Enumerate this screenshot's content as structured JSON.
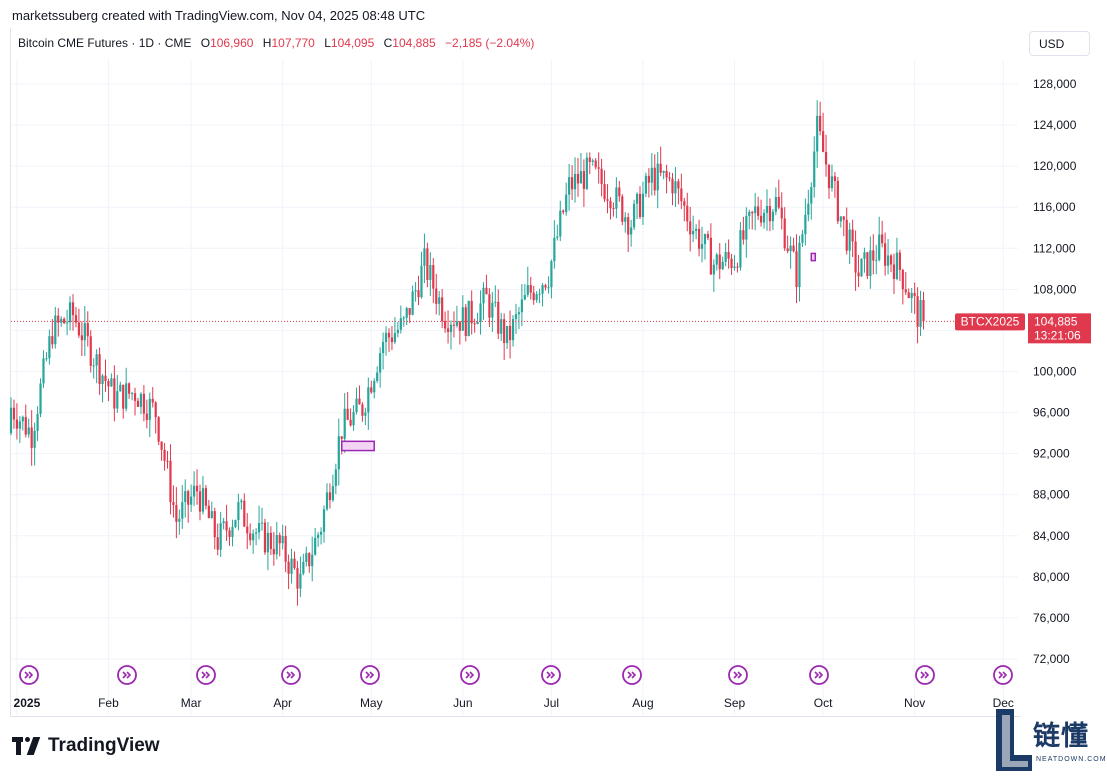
{
  "header": {
    "credit": "marketssuberg created with TradingView.com, Nov 04, 2025 08:48 UTC",
    "symbol": "Bitcoin CME Futures · 1D · CME",
    "o_label": "O",
    "o_value": "106,960",
    "h_label": "H",
    "h_value": "107,770",
    "l_label": "L",
    "l_value": "104,095",
    "c_label": "C",
    "c_value": "104,885",
    "change": "−2,185 (−2.04%)"
  },
  "currency_button": "USD",
  "price_tag": {
    "symbol": "BTCX2025",
    "price": "104,885",
    "countdown": "13:21:06"
  },
  "branding": {
    "tradingview": "TradingView",
    "watermark_cn": "链懂",
    "watermark_en": "NEATDOWN.COM"
  },
  "colors": {
    "up": "#26a69a",
    "down": "#e0384d",
    "marker": "#9c27b0",
    "grid": "#f0f3fa",
    "axis_text": "#131722"
  },
  "chart_data": {
    "type": "candlestick",
    "ylim": [
      70000,
      130000
    ],
    "y_ticks": [
      "72,000",
      "76,000",
      "80,000",
      "84,000",
      "88,000",
      "92,000",
      "96,000",
      "100,000",
      "104,000",
      "108,000",
      "112,000",
      "116,000",
      "120,000",
      "124,000",
      "128,000"
    ],
    "y_tick_values": [
      72000,
      76000,
      80000,
      84000,
      88000,
      92000,
      96000,
      100000,
      104000,
      108000,
      112000,
      116000,
      120000,
      124000,
      128000
    ],
    "x_labels": [
      "2025",
      "Feb",
      "Mar",
      "Apr",
      "May",
      "Jun",
      "Jul",
      "Aug",
      "Sep",
      "Oct",
      "Nov",
      "Dec"
    ],
    "x_label_dates": [
      "2025-01-01",
      "2025-02-01",
      "2025-03-01",
      "2025-04-01",
      "2025-05-01",
      "2025-06-01",
      "2025-07-01",
      "2025-08-01",
      "2025-09-01",
      "2025-10-01",
      "2025-11-01",
      "2025-12-01"
    ],
    "x_range": [
      "2024-12-30",
      "2025-12-06"
    ],
    "last_price": 104885,
    "closes_by_week": [
      {
        "date": "2024-12-30",
        "close": 96500
      },
      {
        "date": "2025-01-06",
        "close": 94000
      },
      {
        "date": "2025-01-13",
        "close": 104000
      },
      {
        "date": "2025-01-20",
        "close": 105500
      },
      {
        "date": "2025-01-27",
        "close": 101500
      },
      {
        "date": "2025-02-03",
        "close": 97500
      },
      {
        "date": "2025-02-10",
        "close": 98000
      },
      {
        "date": "2025-02-17",
        "close": 96000
      },
      {
        "date": "2025-02-24",
        "close": 85500
      },
      {
        "date": "2025-03-03",
        "close": 88500
      },
      {
        "date": "2025-03-10",
        "close": 83500
      },
      {
        "date": "2025-03-17",
        "close": 86500
      },
      {
        "date": "2025-03-24",
        "close": 84000
      },
      {
        "date": "2025-03-31",
        "close": 83000
      },
      {
        "date": "2025-04-07",
        "close": 79500
      },
      {
        "date": "2025-04-14",
        "close": 85000
      },
      {
        "date": "2025-04-21",
        "close": 94500
      },
      {
        "date": "2025-04-28",
        "close": 96500
      },
      {
        "date": "2025-05-05",
        "close": 103000
      },
      {
        "date": "2025-05-12",
        "close": 104500
      },
      {
        "date": "2025-05-19",
        "close": 110500
      },
      {
        "date": "2025-05-26",
        "close": 105500
      },
      {
        "date": "2025-06-02",
        "close": 105000
      },
      {
        "date": "2025-06-09",
        "close": 107000
      },
      {
        "date": "2025-06-16",
        "close": 103000
      },
      {
        "date": "2025-06-23",
        "close": 107500
      },
      {
        "date": "2025-06-30",
        "close": 109500
      },
      {
        "date": "2025-07-07",
        "close": 118000
      },
      {
        "date": "2025-07-14",
        "close": 119500
      },
      {
        "date": "2025-07-21",
        "close": 117500
      },
      {
        "date": "2025-07-28",
        "close": 114500
      },
      {
        "date": "2025-08-04",
        "close": 119000
      },
      {
        "date": "2025-08-11",
        "close": 118500
      },
      {
        "date": "2025-08-18",
        "close": 114000
      },
      {
        "date": "2025-08-25",
        "close": 110500
      },
      {
        "date": "2025-09-01",
        "close": 111000
      },
      {
        "date": "2025-09-08",
        "close": 115500
      },
      {
        "date": "2025-09-15",
        "close": 116500
      },
      {
        "date": "2025-09-22",
        "close": 109500
      },
      {
        "date": "2025-09-29",
        "close": 123500
      },
      {
        "date": "2025-10-06",
        "close": 116000
      },
      {
        "date": "2025-10-13",
        "close": 109500
      },
      {
        "date": "2025-10-20",
        "close": 112000
      },
      {
        "date": "2025-10-27",
        "close": 110000
      },
      {
        "date": "2025-11-03",
        "close": 104885
      }
    ],
    "last_candle": {
      "date": "2025-11-04",
      "open": 106960,
      "high": 107770,
      "low": 104095,
      "close": 104885
    },
    "cme_gaps": [
      {
        "date_from": "2025-04-21",
        "date_to": "2025-05-02",
        "price_low": 92300,
        "price_high": 93200
      },
      {
        "date_from": "2025-09-27",
        "date_to": "2025-09-28",
        "price_low": 110800,
        "price_high": 111500
      }
    ]
  }
}
